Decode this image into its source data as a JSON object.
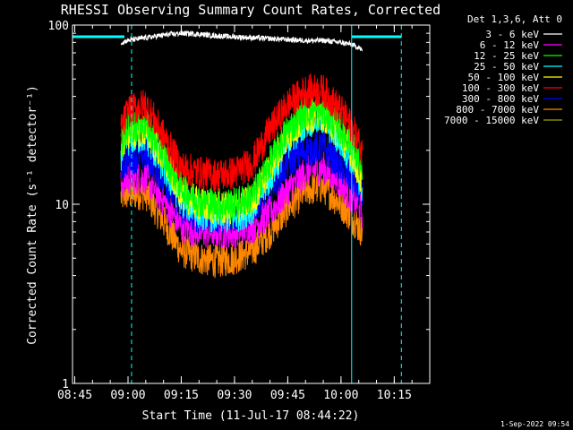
{
  "chart_data": {
    "type": "line",
    "title": "RHESSI Observing Summary Count Rates, Corrected",
    "xlabel": "Start Time (11-Jul-17 08:44:22)",
    "ylabel": "Corrected Count Rate (s⁻¹ detector⁻¹)",
    "y_scale": "log",
    "ylim": [
      1,
      100
    ],
    "y_ticks": [
      "1",
      "10",
      "100"
    ],
    "xlim": [
      "08:44:22",
      "10:25"
    ],
    "x_ticks": [
      "08:45",
      "09:00",
      "09:15",
      "09:30",
      "09:45",
      "10:00",
      "10:15"
    ],
    "legend_title": "Det 1,3,6, Att 0",
    "legend_position": "right",
    "footer": "1-Sep-2022 09:54",
    "attenuator_bars": [
      [
        "08:44:22",
        "08:59"
      ],
      [
        "10:03",
        "10:17"
      ]
    ],
    "marker_lines_solid": [
      "08:44:22",
      "10:03"
    ],
    "marker_lines_dashed": [
      "09:01",
      "10:17"
    ],
    "data_gaps": [
      [
        "08:44:22",
        "08:58"
      ],
      [
        "10:06",
        "10:25"
      ]
    ],
    "series": [
      {
        "name": "3 - 6 keV",
        "color": "#ffffff",
        "x": [
          "08:58",
          "09:00",
          "09:05",
          "09:10",
          "09:15",
          "09:20",
          "09:25",
          "09:30",
          "09:35",
          "09:40",
          "09:45",
          "09:50",
          "09:55",
          "10:00",
          "10:03",
          "10:05",
          "10:06"
        ],
        "values": [
          80,
          82,
          85,
          88,
          90,
          89,
          87,
          86,
          85,
          84,
          83,
          82,
          82,
          80,
          78,
          75,
          72
        ]
      },
      {
        "name": "6 - 12 keV",
        "color": "#ff00ff",
        "x": [
          "08:58",
          "09:00",
          "09:05",
          "09:10",
          "09:15",
          "09:20",
          "09:25",
          "09:30",
          "09:35",
          "09:40",
          "09:45",
          "09:50",
          "09:55",
          "10:00",
          "10:03",
          "10:05",
          "10:06"
        ],
        "values": [
          13,
          14,
          14,
          10.5,
          7.5,
          7,
          7,
          7,
          7.5,
          9,
          12,
          15,
          16,
          13,
          11,
          10,
          9
        ]
      },
      {
        "name": "12 - 25 keV",
        "color": "#00ff00",
        "x": [
          "08:58",
          "09:00",
          "09:05",
          "09:10",
          "09:15",
          "09:20",
          "09:25",
          "09:30",
          "09:35",
          "09:40",
          "09:45",
          "09:50",
          "09:55",
          "10:00",
          "10:03",
          "10:05",
          "10:06"
        ],
        "values": [
          22,
          27,
          28,
          19,
          12.5,
          10.5,
          10,
          10,
          11,
          17,
          26,
          33,
          33,
          26,
          22,
          17,
          14
        ]
      },
      {
        "name": "25 - 50 keV",
        "color": "#00ffff",
        "x": [
          "08:58",
          "09:00",
          "09:05",
          "09:10",
          "09:15",
          "09:20",
          "09:25",
          "09:30",
          "09:35",
          "09:40",
          "09:45",
          "09:50",
          "09:55",
          "10:00",
          "10:03",
          "10:05",
          "10:06"
        ],
        "values": [
          19,
          23,
          24,
          16,
          10.5,
          9,
          8.5,
          8.5,
          9.5,
          14,
          22,
          29,
          30,
          22,
          18,
          14,
          12
        ]
      },
      {
        "name": "50 - 100 keV",
        "color": "#ffff00",
        "x": [
          "08:58",
          "09:00",
          "09:05",
          "09:10",
          "09:15",
          "09:20",
          "09:25",
          "09:30",
          "09:35",
          "09:40",
          "09:45",
          "09:50",
          "09:55",
          "10:00",
          "10:03",
          "10:05",
          "10:06"
        ],
        "values": [
          21,
          25,
          26,
          18,
          11.5,
          10,
          9.5,
          9.5,
          10.5,
          16,
          24,
          31,
          32,
          24,
          20,
          15,
          13
        ]
      },
      {
        "name": "100 - 300 keV",
        "color": "#ff0000",
        "x": [
          "08:58",
          "09:00",
          "09:05",
          "09:10",
          "09:15",
          "09:20",
          "09:25",
          "09:30",
          "09:35",
          "09:40",
          "09:45",
          "09:50",
          "09:55",
          "10:00",
          "10:03",
          "10:05",
          "10:06"
        ],
        "values": [
          26,
          33,
          36,
          24,
          16,
          15,
          14.5,
          15,
          17,
          26,
          36,
          43,
          43,
          33,
          27,
          22,
          19
        ]
      },
      {
        "name": "300 - 800 keV",
        "color": "#0000ff",
        "x": [
          "08:58",
          "09:00",
          "09:05",
          "09:10",
          "09:15",
          "09:20",
          "09:25",
          "09:30",
          "09:35",
          "09:40",
          "09:45",
          "09:50",
          "09:55",
          "10:00",
          "10:03",
          "10:05",
          "10:06"
        ],
        "values": [
          16,
          18,
          19,
          14,
          9.5,
          8.5,
          8.5,
          8.5,
          9.5,
          12.5,
          17,
          20,
          21,
          16,
          14,
          12,
          11
        ]
      },
      {
        "name": "800 - 7000 keV",
        "color": "#ff8800",
        "x": [
          "08:58",
          "09:00",
          "09:05",
          "09:10",
          "09:15",
          "09:20",
          "09:25",
          "09:30",
          "09:35",
          "09:40",
          "09:45",
          "09:50",
          "09:55",
          "10:00",
          "10:03",
          "10:05",
          "10:06"
        ],
        "values": [
          11,
          11.5,
          11.5,
          8,
          5.5,
          5,
          4.8,
          5,
          5.5,
          7,
          9.5,
          12,
          12.5,
          10,
          8.5,
          7.5,
          7
        ]
      },
      {
        "name": "7000 - 15000 keV",
        "color": "#a0a000",
        "x": [],
        "values": []
      }
    ]
  }
}
